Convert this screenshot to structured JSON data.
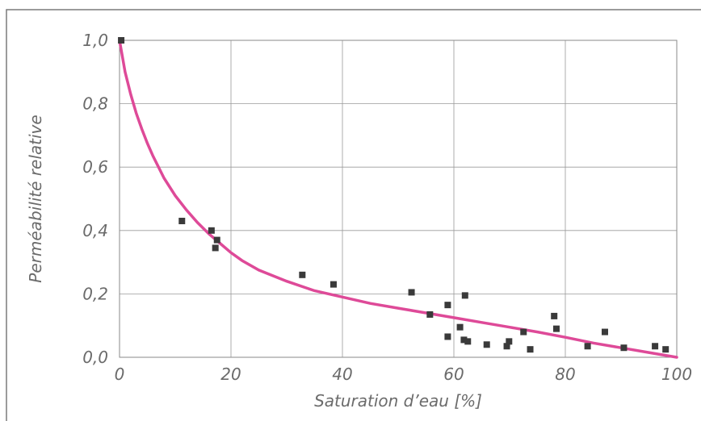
{
  "chart_data": {
    "type": "scatter",
    "title": "",
    "xlabel": "Saturation d’eau [%]",
    "ylabel": "Perméabilité relative",
    "xlim": [
      0,
      100
    ],
    "ylim": [
      0,
      1.0
    ],
    "x_ticks": [
      "0",
      "20",
      "40",
      "60",
      "80",
      "100"
    ],
    "y_ticks": [
      "0,0",
      "0,2",
      "0,4",
      "0,6",
      "0,8",
      "1,0"
    ],
    "grid": true,
    "series": [
      {
        "kind": "points",
        "color": "#3a3a3a",
        "x": [
          0.3,
          11.2,
          16.5,
          17.5,
          17.2,
          32.8,
          38.4,
          52.4,
          55.7,
          58.9,
          58.9,
          61.1,
          62.0,
          61.8,
          62.5,
          65.9,
          69.5,
          69.9,
          72.5,
          73.7,
          78.0,
          78.4,
          84.0,
          87.1,
          90.5,
          96.1,
          98.0
        ],
        "y": [
          1.0,
          0.43,
          0.4,
          0.37,
          0.345,
          0.26,
          0.23,
          0.205,
          0.135,
          0.165,
          0.065,
          0.095,
          0.195,
          0.055,
          0.05,
          0.04,
          0.035,
          0.05,
          0.08,
          0.025,
          0.13,
          0.09,
          0.035,
          0.08,
          0.03,
          0.035,
          0.025
        ]
      },
      {
        "kind": "curve",
        "color": "#de4a98",
        "x": [
          0,
          1,
          2,
          3,
          4,
          5,
          6,
          8,
          10,
          12,
          14,
          16,
          18,
          20,
          22,
          25,
          30,
          35,
          40,
          45,
          50,
          55,
          60,
          65,
          70,
          75,
          80,
          85,
          90,
          95,
          100
        ],
        "y": [
          1.0,
          0.9,
          0.83,
          0.77,
          0.72,
          0.675,
          0.635,
          0.565,
          0.51,
          0.465,
          0.425,
          0.39,
          0.36,
          0.33,
          0.305,
          0.275,
          0.24,
          0.21,
          0.19,
          0.17,
          0.155,
          0.14,
          0.125,
          0.11,
          0.095,
          0.08,
          0.063,
          0.045,
          0.03,
          0.015,
          0.0
        ]
      }
    ]
  }
}
